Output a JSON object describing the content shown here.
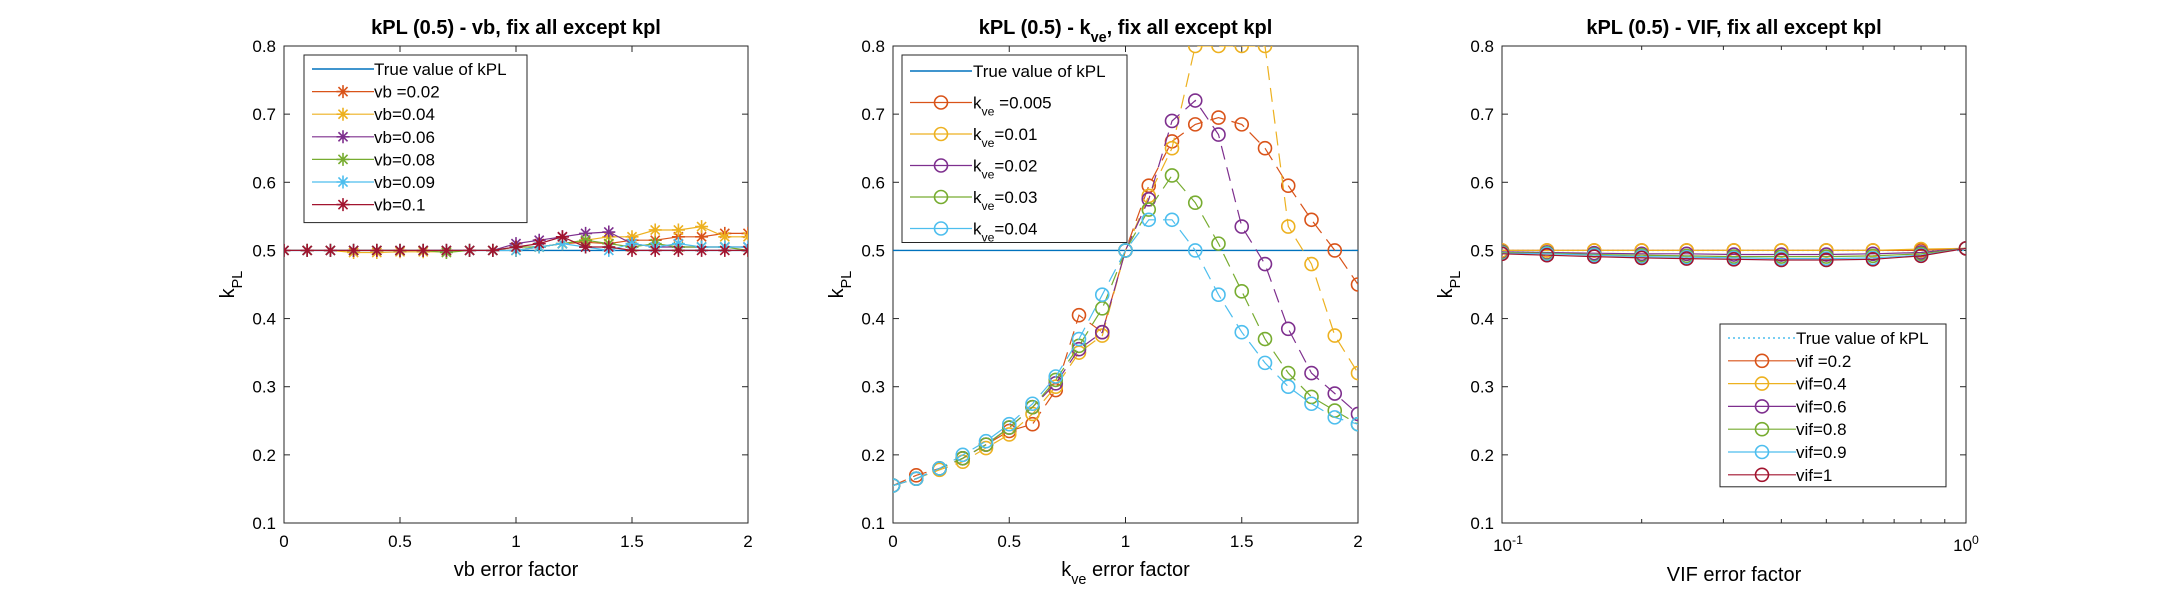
{
  "chart_data": [
    {
      "type": "line",
      "title": "kPL (0.5) - vb, fix all except kpl",
      "xlabel": "vb error factor",
      "ylabel": "k",
      "ylabel_sub": "PL",
      "xlim": [
        0,
        2
      ],
      "ylim": [
        0.1,
        0.8
      ],
      "xticks": [
        0,
        0.5,
        1,
        1.5,
        2
      ],
      "xtick_labels": [
        "0",
        "0.5",
        "1",
        "1.5",
        "2"
      ],
      "yticks": [
        0.1,
        0.2,
        0.3,
        0.4,
        0.5,
        0.6,
        0.7,
        0.8
      ],
      "ytick_labels": [
        "0.1",
        "0.2",
        "0.3",
        "0.4",
        "0.5",
        "0.6",
        "0.7",
        "0.8"
      ],
      "legend_position": "top-left",
      "x": [
        0,
        0.1,
        0.2,
        0.3,
        0.4,
        0.5,
        0.6,
        0.7,
        0.8,
        0.9,
        1.0,
        1.1,
        1.2,
        1.3,
        1.4,
        1.5,
        1.6,
        1.7,
        1.8,
        1.9,
        2.0
      ],
      "reference": {
        "name": "True value of kPL",
        "value": 0.5,
        "color": "#0072BD"
      },
      "series": [
        {
          "name": "vb =0.02",
          "color": "#D95319",
          "marker": "asterisk",
          "values": [
            0.5,
            0.5,
            0.5,
            0.5,
            0.5,
            0.5,
            0.5,
            0.5,
            0.5,
            0.5,
            0.5,
            0.505,
            0.51,
            0.512,
            0.51,
            0.515,
            0.515,
            0.52,
            0.52,
            0.525,
            0.525
          ]
        },
        {
          "name": "vb=0.04",
          "color": "#EDB120",
          "marker": "asterisk",
          "values": [
            0.5,
            0.5,
            0.5,
            0.497,
            0.497,
            0.498,
            0.498,
            0.498,
            0.5,
            0.5,
            0.5,
            0.505,
            0.51,
            0.515,
            0.52,
            0.52,
            0.53,
            0.53,
            0.535,
            0.52,
            0.52
          ]
        },
        {
          "name": "vb=0.06",
          "color": "#7E2F8E",
          "marker": "asterisk",
          "values": [
            0.5,
            0.5,
            0.5,
            0.5,
            0.5,
            0.5,
            0.5,
            0.5,
            0.5,
            0.5,
            0.51,
            0.515,
            0.52,
            0.525,
            0.527,
            0.51,
            0.505,
            0.505,
            0.505,
            0.505,
            0.505
          ]
        },
        {
          "name": "vb=0.08",
          "color": "#77AC30",
          "marker": "asterisk",
          "values": [
            0.5,
            0.5,
            0.5,
            0.5,
            0.5,
            0.5,
            0.5,
            0.497,
            0.5,
            0.5,
            0.505,
            0.505,
            0.51,
            0.515,
            0.51,
            0.505,
            0.51,
            0.505,
            0.505,
            0.505,
            0.5
          ]
        },
        {
          "name": "vb=0.09",
          "color": "#4DBEEE",
          "marker": "asterisk",
          "values": [
            0.5,
            0.5,
            0.5,
            0.5,
            0.5,
            0.5,
            0.5,
            0.5,
            0.5,
            0.5,
            0.5,
            0.505,
            0.51,
            0.505,
            0.5,
            0.51,
            0.505,
            0.51,
            0.505,
            0.505,
            0.505
          ]
        },
        {
          "name": "vb=0.1",
          "color": "#A2142F",
          "marker": "asterisk",
          "values": [
            0.5,
            0.5,
            0.5,
            0.5,
            0.5,
            0.5,
            0.5,
            0.5,
            0.5,
            0.5,
            0.505,
            0.51,
            0.52,
            0.505,
            0.505,
            0.5,
            0.5,
            0.5,
            0.5,
            0.5,
            0.5
          ]
        }
      ]
    },
    {
      "type": "line",
      "title": "kPL (0.5) - k",
      "title_sub": "ve",
      "title_rest": ", fix all except kpl",
      "xlabel": "k",
      "xlabel_sub": "ve",
      "xlabel_rest": " error factor",
      "ylabel": "k",
      "ylabel_sub": "PL",
      "xlim": [
        0,
        2
      ],
      "ylim": [
        0.1,
        0.8
      ],
      "xticks": [
        0,
        0.5,
        1,
        1.5,
        2
      ],
      "xtick_labels": [
        "0",
        "0.5",
        "1",
        "1.5",
        "2"
      ],
      "yticks": [
        0.1,
        0.2,
        0.3,
        0.4,
        0.5,
        0.6,
        0.7,
        0.8
      ],
      "ytick_labels": [
        "0.1",
        "0.2",
        "0.3",
        "0.4",
        "0.5",
        "0.6",
        "0.7",
        "0.8"
      ],
      "legend_position": "top-left",
      "x": [
        0,
        0.1,
        0.2,
        0.3,
        0.4,
        0.5,
        0.6,
        0.7,
        0.8,
        0.9,
        1.0,
        1.1,
        1.2,
        1.3,
        1.4,
        1.5,
        1.6,
        1.7,
        1.8,
        1.9,
        2.0
      ],
      "reference": {
        "name": "True value of kPL",
        "value": 0.5,
        "color": "#0072BD"
      },
      "series": [
        {
          "name": "k",
          "name_sub": "ve",
          "name_rest": " =0.005",
          "color": "#D95319",
          "marker": "circle",
          "values": [
            0.155,
            0.17,
            0.18,
            0.195,
            0.215,
            0.235,
            0.245,
            0.295,
            0.405,
            0.38,
            0.5,
            0.595,
            0.66,
            0.685,
            0.695,
            0.685,
            0.65,
            0.595,
            0.545,
            0.5,
            0.45
          ]
        },
        {
          "name": "k",
          "name_sub": "ve",
          "name_rest": "=0.01",
          "color": "#EDB120",
          "marker": "circle",
          "values": [
            0.155,
            0.165,
            0.178,
            0.19,
            0.21,
            0.23,
            0.26,
            0.3,
            0.35,
            0.375,
            0.5,
            0.58,
            0.65,
            0.8,
            0.8,
            0.8,
            0.8,
            0.535,
            0.48,
            0.375,
            0.32
          ]
        },
        {
          "name": "k",
          "name_sub": "ve",
          "name_rest": "=0.02",
          "color": "#7E2F8E",
          "marker": "circle",
          "values": [
            0.155,
            0.165,
            0.18,
            0.195,
            0.215,
            0.24,
            0.27,
            0.305,
            0.355,
            0.38,
            0.5,
            0.575,
            0.69,
            0.72,
            0.67,
            0.535,
            0.48,
            0.385,
            0.32,
            0.29,
            0.26
          ]
        },
        {
          "name": "k",
          "name_sub": "ve",
          "name_rest": "=0.03",
          "color": "#77AC30",
          "marker": "circle",
          "values": [
            0.155,
            0.165,
            0.18,
            0.195,
            0.215,
            0.24,
            0.27,
            0.31,
            0.36,
            0.415,
            0.5,
            0.56,
            0.61,
            0.57,
            0.51,
            0.44,
            0.37,
            0.32,
            0.285,
            0.265,
            0.245
          ]
        },
        {
          "name": "k",
          "name_sub": "ve",
          "name_rest": "=0.04",
          "color": "#4DBEEE",
          "marker": "circle",
          "values": [
            0.155,
            0.165,
            0.18,
            0.2,
            0.22,
            0.245,
            0.275,
            0.315,
            0.37,
            0.435,
            0.5,
            0.545,
            0.545,
            0.5,
            0.435,
            0.38,
            0.335,
            0.3,
            0.275,
            0.255,
            0.245
          ]
        }
      ]
    },
    {
      "type": "line",
      "title": "kPL (0.5) - VIF, fix all except kpl",
      "xlabel": "VIF error factor",
      "ylabel": "k",
      "ylabel_sub": "PL",
      "xscale": "log",
      "xlim": [
        0.1,
        1
      ],
      "ylim": [
        0.1,
        0.8
      ],
      "xtick_labels": [
        "10",
        "10"
      ],
      "xtick_exponents": [
        "-1",
        "0"
      ],
      "yticks": [
        0.1,
        0.2,
        0.3,
        0.4,
        0.5,
        0.6,
        0.7,
        0.8
      ],
      "ytick_labels": [
        "0.1",
        "0.2",
        "0.3",
        "0.4",
        "0.5",
        "0.6",
        "0.7",
        "0.8"
      ],
      "legend_position": "bottom-right",
      "x": [
        0.1,
        0.125,
        0.158,
        0.2,
        0.25,
        0.316,
        0.4,
        0.5,
        0.63,
        0.8,
        1.0
      ],
      "reference": {
        "name": "True value of kPL",
        "value": 0.5,
        "color": "#4DBEEE",
        "style": "dotted"
      },
      "series": [
        {
          "name": "vif =0.2",
          "color": "#D95319",
          "marker": "circle",
          "values": [
            0.5,
            0.5,
            0.5,
            0.5,
            0.5,
            0.5,
            0.5,
            0.5,
            0.5,
            0.5,
            0.503
          ]
        },
        {
          "name": "vif=0.4",
          "color": "#EDB120",
          "marker": "circle",
          "values": [
            0.5,
            0.5,
            0.5,
            0.5,
            0.5,
            0.5,
            0.5,
            0.5,
            0.5,
            0.502,
            0.503
          ]
        },
        {
          "name": "vif=0.6",
          "color": "#7E2F8E",
          "marker": "circle",
          "values": [
            0.498,
            0.497,
            0.496,
            0.495,
            0.495,
            0.494,
            0.494,
            0.494,
            0.495,
            0.497,
            0.503
          ]
        },
        {
          "name": "vif=0.8",
          "color": "#77AC30",
          "marker": "circle",
          "values": [
            0.497,
            0.496,
            0.494,
            0.493,
            0.492,
            0.491,
            0.491,
            0.491,
            0.492,
            0.495,
            0.503
          ]
        },
        {
          "name": "vif=0.9",
          "color": "#4DBEEE",
          "marker": "circle",
          "values": [
            0.496,
            0.495,
            0.493,
            0.491,
            0.49,
            0.489,
            0.488,
            0.488,
            0.489,
            0.493,
            0.503
          ]
        },
        {
          "name": "vif=1",
          "color": "#A2142F",
          "marker": "circle",
          "values": [
            0.495,
            0.493,
            0.491,
            0.489,
            0.488,
            0.487,
            0.486,
            0.486,
            0.487,
            0.492,
            0.503
          ]
        }
      ]
    }
  ]
}
